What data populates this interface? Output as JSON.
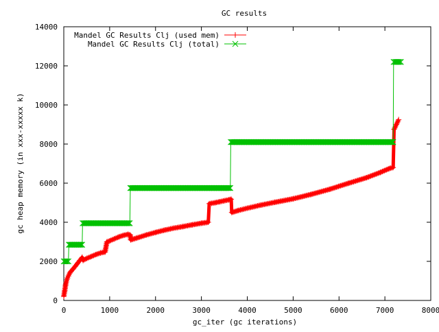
{
  "chart_data": {
    "type": "line",
    "title": "GC results",
    "xlabel": "gc_iter (gc iterations)",
    "ylabel": "gc heap memory (in xxx-xxxxx k)",
    "xlim": [
      0,
      8000
    ],
    "ylim": [
      0,
      14000
    ],
    "x_ticks": [
      "0",
      "1000",
      "2000",
      "3000",
      "4000",
      "5000",
      "6000",
      "7000",
      "8000"
    ],
    "y_ticks": [
      "0",
      "2000",
      "4000",
      "6000",
      "8000",
      "10000",
      "12000",
      "14000"
    ],
    "x_tick_values": [
      0,
      1000,
      2000,
      3000,
      4000,
      5000,
      6000,
      7000,
      8000
    ],
    "y_tick_values": [
      0,
      2000,
      4000,
      6000,
      8000,
      10000,
      12000,
      14000
    ],
    "grid": false,
    "legend_position": "top-left",
    "series": [
      {
        "name": "Mandel GC Results Clj (used mem)",
        "color": "#ff0000",
        "marker": "plus",
        "x": [
          0,
          20,
          40,
          60,
          80,
          100,
          130,
          160,
          200,
          250,
          300,
          350,
          400,
          420,
          500,
          600,
          700,
          800,
          900,
          940,
          1000,
          1100,
          1200,
          1300,
          1400,
          1450,
          1460,
          1600,
          1800,
          2000,
          2200,
          2400,
          2600,
          2800,
          3000,
          3150,
          3170,
          3300,
          3400,
          3500,
          3600,
          3650,
          3660,
          3800,
          4000,
          4300,
          4600,
          5000,
          5400,
          5800,
          6200,
          6600,
          6900,
          7100,
          7180,
          7200,
          7250,
          7300
        ],
        "y": [
          200,
          500,
          800,
          1000,
          1150,
          1250,
          1400,
          1500,
          1600,
          1750,
          1900,
          2050,
          2200,
          2050,
          2150,
          2250,
          2350,
          2430,
          2480,
          3000,
          3050,
          3150,
          3250,
          3330,
          3380,
          3350,
          3100,
          3200,
          3350,
          3480,
          3600,
          3700,
          3780,
          3870,
          3950,
          4000,
          4950,
          5000,
          5050,
          5100,
          5150,
          5180,
          4500,
          4600,
          4720,
          4880,
          5020,
          5200,
          5430,
          5690,
          5990,
          6280,
          6550,
          6750,
          6800,
          8750,
          9000,
          9250
        ]
      },
      {
        "name": "Mandel GC Results Clj (total)",
        "color": "#00c000",
        "marker": "x",
        "x": [
          0,
          100,
          110,
          400,
          410,
          1440,
          1450,
          3630,
          3640,
          7180,
          7190,
          7350
        ],
        "y": [
          2000,
          2000,
          2850,
          2850,
          3950,
          3950,
          5750,
          5750,
          8100,
          8100,
          12200,
          12200
        ]
      }
    ]
  }
}
